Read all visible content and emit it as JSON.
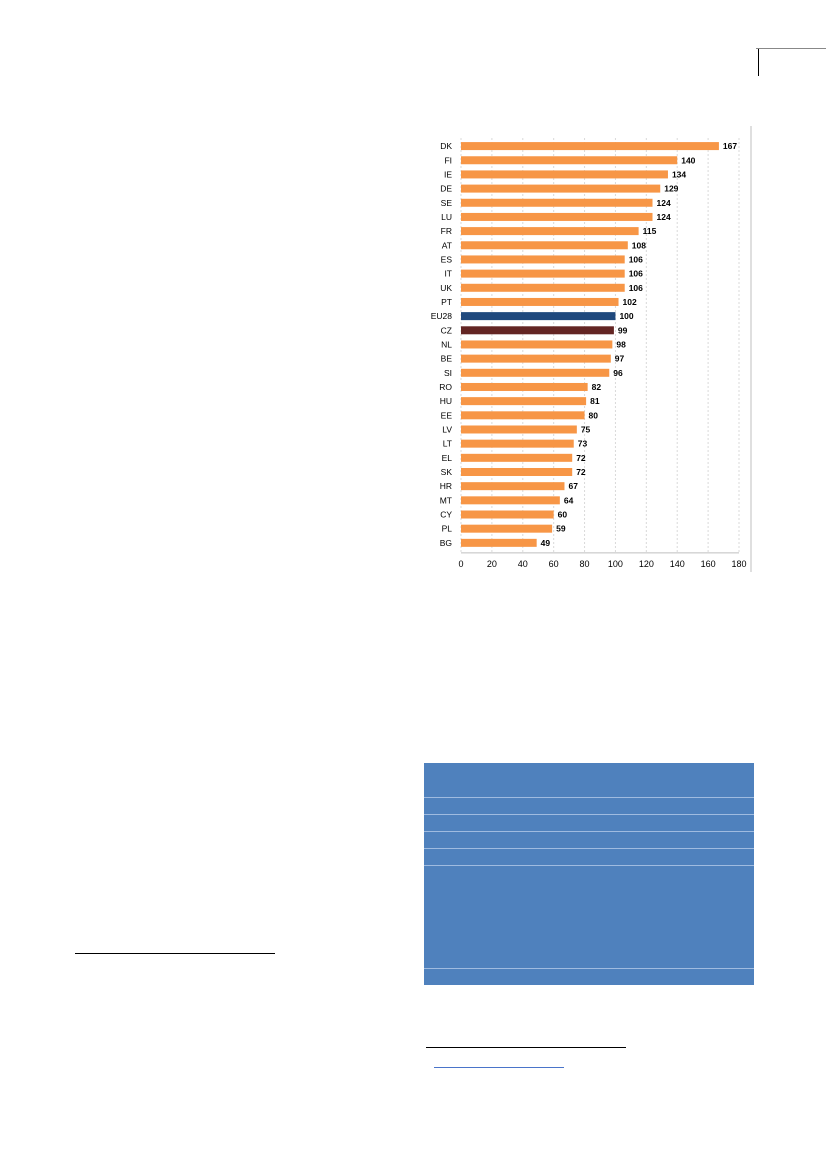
{
  "chart_data": {
    "type": "bar",
    "orientation": "horizontal",
    "categories": [
      "DK",
      "FI",
      "IE",
      "DE",
      "SE",
      "LU",
      "FR",
      "AT",
      "ES",
      "IT",
      "UK",
      "PT",
      "EU28",
      "CZ",
      "NL",
      "BE",
      "SI",
      "RO",
      "HU",
      "EE",
      "LV",
      "LT",
      "EL",
      "SK",
      "HR",
      "MT",
      "CY",
      "PL",
      "BG"
    ],
    "values": [
      167,
      140,
      134,
      129,
      124,
      124,
      115,
      108,
      106,
      106,
      106,
      102,
      100,
      99,
      98,
      97,
      96,
      82,
      81,
      80,
      75,
      73,
      72,
      72,
      67,
      64,
      60,
      59,
      49
    ],
    "data_labels": [
      "167",
      "140",
      "134",
      "129",
      "124",
      "124",
      "115",
      "108",
      "106",
      "106",
      "106",
      "102",
      "100",
      "99",
      "98",
      "97",
      "96",
      "82",
      "81",
      "80",
      "75",
      "73",
      "72",
      "72",
      "67",
      "64",
      "60",
      "59",
      "49"
    ],
    "xlim": [
      0,
      180
    ],
    "x_ticks": [
      0,
      20,
      40,
      60,
      80,
      100,
      120,
      140,
      160,
      180
    ],
    "x_tick_labels": [
      "0",
      "20",
      "40",
      "60",
      "80",
      "100",
      "120",
      "140",
      "160",
      "180"
    ],
    "grid": "vertical dashed",
    "colors": {
      "default": "#f79646",
      "EU28": "#1f497d",
      "CZ": "#632523"
    }
  },
  "info_box": {
    "color": "#4f81bd"
  }
}
